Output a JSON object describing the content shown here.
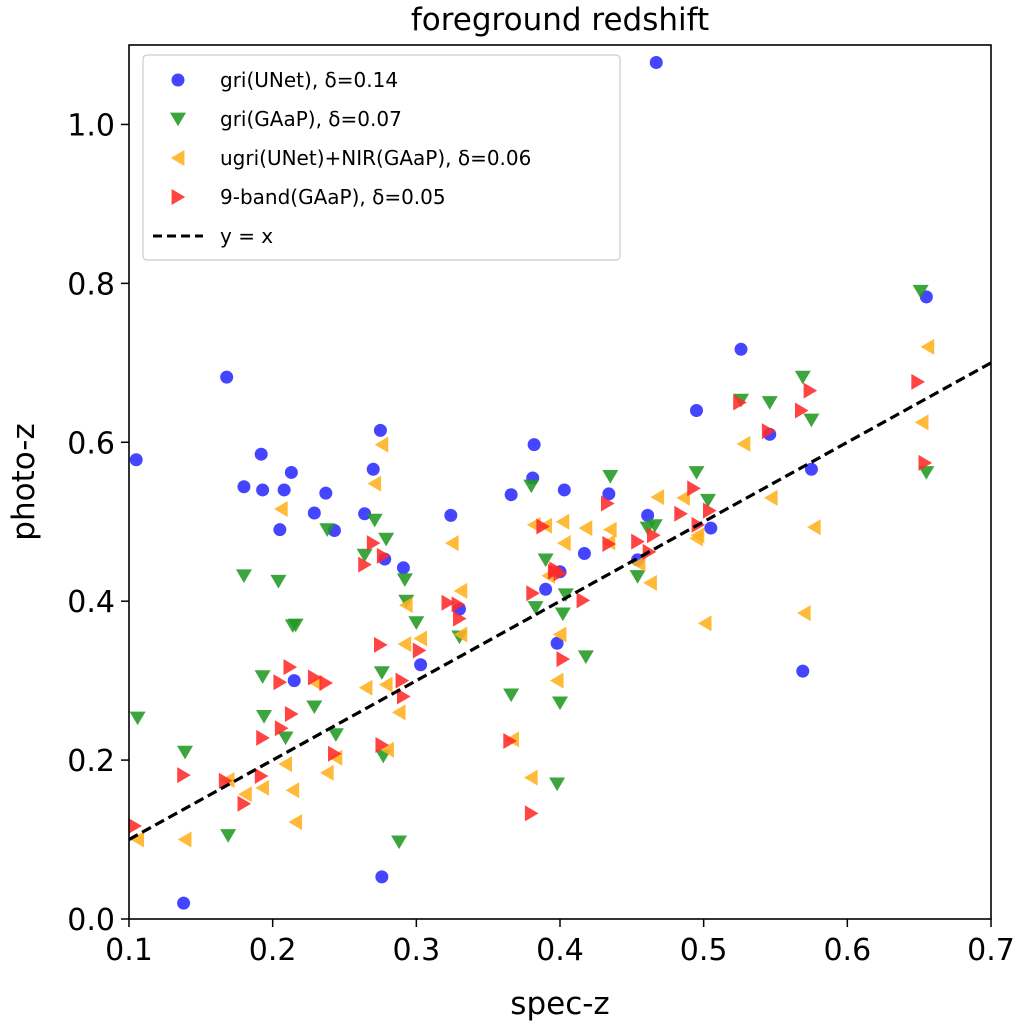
{
  "chart_data": {
    "type": "scatter",
    "title": "foreground redshift",
    "xlabel": "spec-z",
    "ylabel": "photo-z",
    "xlim": [
      0.1,
      0.7
    ],
    "ylim": [
      0.0,
      1.1
    ],
    "xticks": [
      "0.1",
      "0.2",
      "0.3",
      "0.4",
      "0.5",
      "0.6",
      "0.7"
    ],
    "yticks": [
      "0.0",
      "0.2",
      "0.4",
      "0.6",
      "0.8",
      "1.0"
    ],
    "grid": false,
    "legend_position": "top-left",
    "series": [
      {
        "name": "gri(UNet), δ=0.14",
        "marker": "circle",
        "color": "#2b2bff",
        "points": [
          [
            0.105,
            0.578
          ],
          [
            0.138,
            0.02
          ],
          [
            0.168,
            0.682
          ],
          [
            0.18,
            0.544
          ],
          [
            0.192,
            0.585
          ],
          [
            0.193,
            0.54
          ],
          [
            0.205,
            0.49
          ],
          [
            0.208,
            0.54
          ],
          [
            0.213,
            0.562
          ],
          [
            0.215,
            0.3
          ],
          [
            0.229,
            0.511
          ],
          [
            0.237,
            0.536
          ],
          [
            0.243,
            0.489
          ],
          [
            0.264,
            0.51
          ],
          [
            0.27,
            0.566
          ],
          [
            0.275,
            0.615
          ],
          [
            0.276,
            0.053
          ],
          [
            0.278,
            0.453
          ],
          [
            0.291,
            0.442
          ],
          [
            0.303,
            0.32
          ],
          [
            0.324,
            0.508
          ],
          [
            0.33,
            0.39
          ],
          [
            0.366,
            0.534
          ],
          [
            0.381,
            0.555
          ],
          [
            0.382,
            0.597
          ],
          [
            0.39,
            0.415
          ],
          [
            0.398,
            0.347
          ],
          [
            0.4,
            0.437
          ],
          [
            0.403,
            0.54
          ],
          [
            0.417,
            0.46
          ],
          [
            0.434,
            0.535
          ],
          [
            0.454,
            0.452
          ],
          [
            0.461,
            0.508
          ],
          [
            0.467,
            1.078
          ],
          [
            0.495,
            0.64
          ],
          [
            0.505,
            0.492
          ],
          [
            0.526,
            0.717
          ],
          [
            0.546,
            0.61
          ],
          [
            0.569,
            0.312
          ],
          [
            0.575,
            0.566
          ],
          [
            0.655,
            0.783
          ]
        ]
      },
      {
        "name": "gri(GAaP), δ=0.07",
        "marker": "triangle-down",
        "color": "#229922",
        "points": [
          [
            0.106,
            0.253
          ],
          [
            0.139,
            0.21
          ],
          [
            0.169,
            0.105
          ],
          [
            0.18,
            0.432
          ],
          [
            0.193,
            0.305
          ],
          [
            0.194,
            0.255
          ],
          [
            0.204,
            0.425
          ],
          [
            0.209,
            0.228
          ],
          [
            0.214,
            0.369
          ],
          [
            0.216,
            0.37
          ],
          [
            0.229,
            0.267
          ],
          [
            0.238,
            0.49
          ],
          [
            0.244,
            0.232
          ],
          [
            0.264,
            0.458
          ],
          [
            0.271,
            0.502
          ],
          [
            0.276,
            0.31
          ],
          [
            0.277,
            0.205
          ],
          [
            0.279,
            0.478
          ],
          [
            0.288,
            0.097
          ],
          [
            0.292,
            0.427
          ],
          [
            0.293,
            0.4
          ],
          [
            0.3,
            0.373
          ],
          [
            0.33,
            0.355
          ],
          [
            0.366,
            0.282
          ],
          [
            0.38,
            0.545
          ],
          [
            0.383,
            0.392
          ],
          [
            0.39,
            0.452
          ],
          [
            0.398,
            0.17
          ],
          [
            0.4,
            0.272
          ],
          [
            0.402,
            0.384
          ],
          [
            0.404,
            0.408
          ],
          [
            0.418,
            0.33
          ],
          [
            0.435,
            0.557
          ],
          [
            0.454,
            0.431
          ],
          [
            0.461,
            0.492
          ],
          [
            0.466,
            0.495
          ],
          [
            0.495,
            0.562
          ],
          [
            0.503,
            0.527
          ],
          [
            0.526,
            0.653
          ],
          [
            0.546,
            0.65
          ],
          [
            0.569,
            0.682
          ],
          [
            0.575,
            0.628
          ],
          [
            0.651,
            0.79
          ],
          [
            0.655,
            0.562
          ]
        ]
      },
      {
        "name": "ugri(UNet)+NIR(GAaP), δ=0.06",
        "marker": "triangle-left",
        "color": "#ffb01e",
        "points": [
          [
            0.106,
            0.1
          ],
          [
            0.139,
            0.1
          ],
          [
            0.169,
            0.175
          ],
          [
            0.181,
            0.157
          ],
          [
            0.193,
            0.165
          ],
          [
            0.206,
            0.516
          ],
          [
            0.209,
            0.195
          ],
          [
            0.214,
            0.162
          ],
          [
            0.216,
            0.122
          ],
          [
            0.23,
            0.297
          ],
          [
            0.238,
            0.184
          ],
          [
            0.244,
            0.203
          ],
          [
            0.265,
            0.291
          ],
          [
            0.271,
            0.548
          ],
          [
            0.276,
            0.597
          ],
          [
            0.279,
            0.295
          ],
          [
            0.28,
            0.213
          ],
          [
            0.288,
            0.26
          ],
          [
            0.292,
            0.346
          ],
          [
            0.293,
            0.395
          ],
          [
            0.303,
            0.353
          ],
          [
            0.325,
            0.473
          ],
          [
            0.331,
            0.413
          ],
          [
            0.331,
            0.358
          ],
          [
            0.367,
            0.226
          ],
          [
            0.38,
            0.178
          ],
          [
            0.382,
            0.496
          ],
          [
            0.39,
            0.495
          ],
          [
            0.392,
            0.432
          ],
          [
            0.398,
            0.3
          ],
          [
            0.4,
            0.358
          ],
          [
            0.402,
            0.5
          ],
          [
            0.403,
            0.473
          ],
          [
            0.418,
            0.492
          ],
          [
            0.434,
            0.474
          ],
          [
            0.435,
            0.49
          ],
          [
            0.455,
            0.447
          ],
          [
            0.463,
            0.423
          ],
          [
            0.468,
            0.531
          ],
          [
            0.486,
            0.53
          ],
          [
            0.495,
            0.479
          ],
          [
            0.496,
            0.483
          ],
          [
            0.501,
            0.372
          ],
          [
            0.528,
            0.598
          ],
          [
            0.547,
            0.53
          ],
          [
            0.57,
            0.385
          ],
          [
            0.577,
            0.493
          ],
          [
            0.652,
            0.625
          ],
          [
            0.656,
            0.72
          ]
        ]
      },
      {
        "name": "9-band(GAaP), δ=0.05",
        "marker": "triangle-right",
        "color": "#ff2a2a",
        "points": [
          [
            0.104,
            0.117
          ],
          [
            0.138,
            0.181
          ],
          [
            0.167,
            0.174
          ],
          [
            0.18,
            0.145
          ],
          [
            0.192,
            0.18
          ],
          [
            0.193,
            0.228
          ],
          [
            0.205,
            0.298
          ],
          [
            0.206,
            0.24
          ],
          [
            0.212,
            0.317
          ],
          [
            0.213,
            0.258
          ],
          [
            0.229,
            0.304
          ],
          [
            0.237,
            0.297
          ],
          [
            0.243,
            0.208
          ],
          [
            0.264,
            0.446
          ],
          [
            0.27,
            0.473
          ],
          [
            0.275,
            0.345
          ],
          [
            0.276,
            0.219
          ],
          [
            0.277,
            0.457
          ],
          [
            0.29,
            0.3
          ],
          [
            0.291,
            0.28
          ],
          [
            0.302,
            0.338
          ],
          [
            0.322,
            0.398
          ],
          [
            0.329,
            0.396
          ],
          [
            0.33,
            0.378
          ],
          [
            0.365,
            0.224
          ],
          [
            0.38,
            0.133
          ],
          [
            0.381,
            0.41
          ],
          [
            0.388,
            0.494
          ],
          [
            0.396,
            0.437
          ],
          [
            0.397,
            0.44
          ],
          [
            0.4,
            0.435
          ],
          [
            0.402,
            0.327
          ],
          [
            0.416,
            0.401
          ],
          [
            0.433,
            0.523
          ],
          [
            0.434,
            0.472
          ],
          [
            0.454,
            0.475
          ],
          [
            0.462,
            0.462
          ],
          [
            0.465,
            0.483
          ],
          [
            0.484,
            0.51
          ],
          [
            0.493,
            0.542
          ],
          [
            0.496,
            0.496
          ],
          [
            0.504,
            0.514
          ],
          [
            0.525,
            0.65
          ],
          [
            0.545,
            0.614
          ],
          [
            0.568,
            0.64
          ],
          [
            0.574,
            0.665
          ],
          [
            0.649,
            0.676
          ],
          [
            0.654,
            0.574
          ]
        ]
      },
      {
        "name": "y = x",
        "marker": "dashed-line",
        "color": "#000000",
        "points": [
          [
            0.1,
            0.1
          ],
          [
            0.7,
            0.7
          ]
        ]
      }
    ]
  }
}
